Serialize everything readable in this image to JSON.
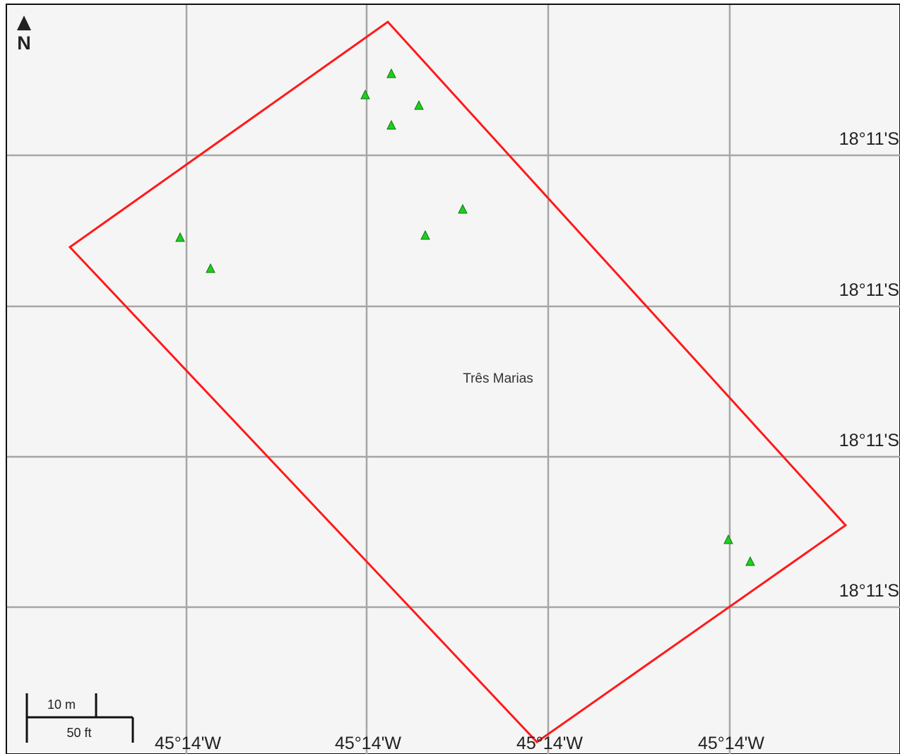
{
  "map": {
    "north_arrow_label": "N",
    "place_name": "Três Marias",
    "latitude_labels": [
      "18°11'S",
      "18°11'S",
      "18°11'S",
      "18°11'S"
    ],
    "longitude_labels": [
      "45°14'W",
      "45°14'W",
      "45°14'W",
      "45°14'W"
    ],
    "scale_bar": {
      "metric_label": "10 m",
      "imperial_label": "50 ft"
    },
    "colors": {
      "background": "#f5f5f5",
      "grid": "#a6a6a6",
      "boundary": "#ff1a1a",
      "marker": "#22cc22",
      "marker_outline": "#0a7a0a"
    },
    "marker_count": 10
  }
}
